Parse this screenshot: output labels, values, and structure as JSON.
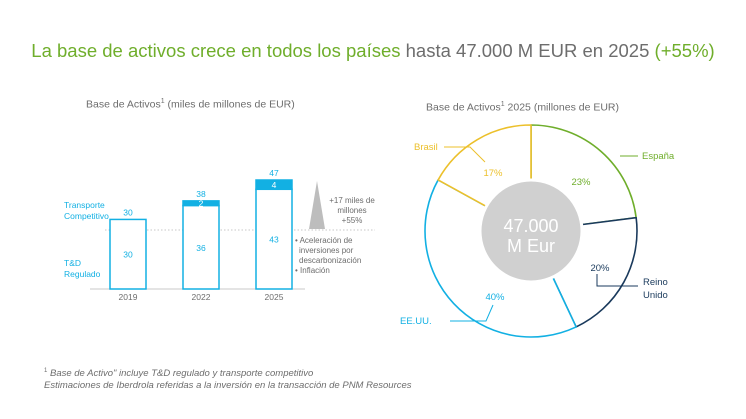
{
  "title": {
    "part1": "La base de activos crece en todos los países ",
    "part2": "hasta 47.000 M EUR en 2025 ",
    "part3": "(+55%)"
  },
  "colors": {
    "green": "#6fae2b",
    "cyan": "#12b0e3",
    "dark_blue": "#1a3a5c",
    "yellow": "#ecc02b",
    "gray_text": "#6d6d6d",
    "center_gray": "#d0d0d0"
  },
  "chart_data": [
    {
      "type": "bar",
      "title": "Base de Activos",
      "title_sup": "1",
      "title_suffix": " (miles de millones de EUR)",
      "categories": [
        "2019",
        "2022",
        "2025"
      ],
      "series": [
        {
          "name": "T&D Regulado",
          "label_line1": "T&D",
          "label_line2": "Regulado",
          "values": [
            30,
            36,
            43
          ]
        },
        {
          "name": "Transporte Competitivo",
          "label_line1": "Transporte",
          "label_line2": "Competitivo",
          "values": [
            0,
            2,
            4
          ]
        }
      ],
      "totals": [
        30,
        38,
        47
      ],
      "ylim": [
        0,
        47
      ],
      "annotation": {
        "line1": "+17 miles de",
        "line2": "millones",
        "line3": "+55%",
        "bullets": [
          "• Aceleración de",
          "inversiones por",
          "descarbonización",
          "• Inflación"
        ]
      }
    },
    {
      "type": "pie",
      "title": "Base de Activos",
      "title_sup": "1",
      "title_suffix": " 2025 (millones de EUR)",
      "center_line1": "47.000",
      "center_line2": "M Eur",
      "slices": [
        {
          "label": "España",
          "value": 23,
          "pct": "23%",
          "color": "#6fae2b"
        },
        {
          "label_line1": "Reino",
          "label_line2": "Unido",
          "value": 20,
          "pct": "20%",
          "color": "#1a3a5c"
        },
        {
          "label": "EE.UU.",
          "value": 40,
          "pct": "40%",
          "color": "#12b0e3"
        },
        {
          "label": "Brasil",
          "value": 17,
          "pct": "17%",
          "color": "#ecc02b"
        }
      ]
    }
  ],
  "footnotes": {
    "sup": "1",
    "line1": " Base de Activo\" incluye T&D regulado y transporte competitivo",
    "line2": "Estimaciones de Iberdrola referidas a la inversión en la transacción de PNM Resources"
  }
}
